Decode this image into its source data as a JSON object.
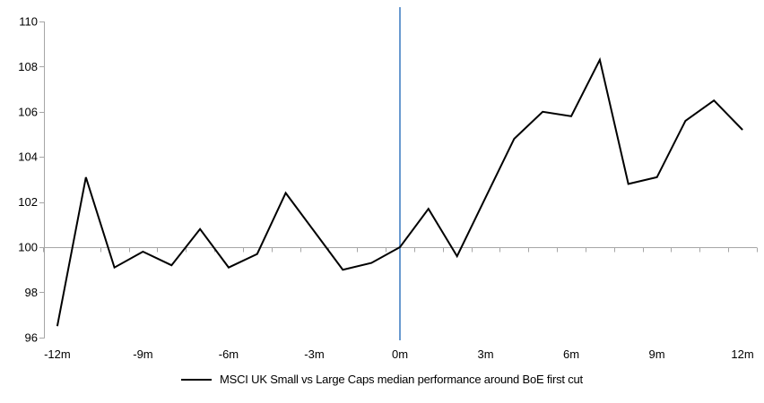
{
  "legend": {
    "label": "MSCI UK Small vs Large Caps median performance around BoE first cut"
  },
  "chart_data": {
    "type": "line",
    "title": "",
    "xlabel": "",
    "ylabel": "",
    "x_unit": "m",
    "x": [
      -12,
      -11,
      -10,
      -9,
      -8,
      -7,
      -6,
      -5,
      -4,
      -3,
      -2,
      -1,
      0,
      1,
      2,
      3,
      4,
      5,
      6,
      7,
      8,
      9,
      10,
      11,
      12
    ],
    "series": [
      {
        "name": "MSCI UK Small vs Large Caps median performance around BoE first cut",
        "color": "#000000",
        "values": [
          96.5,
          103.1,
          99.1,
          99.8,
          99.2,
          100.8,
          99.1,
          99.7,
          102.4,
          100.7,
          99.0,
          99.3,
          100.0,
          101.7,
          99.6,
          102.2,
          104.8,
          106.0,
          105.8,
          108.3,
          102.8,
          103.1,
          105.6,
          106.5,
          105.2
        ]
      }
    ],
    "ylim": [
      96,
      110
    ],
    "xlim": [
      -12.5,
      12.5
    ],
    "yticks": [
      96,
      98,
      100,
      102,
      104,
      106,
      108,
      110
    ],
    "xtick_labels": [
      {
        "x": -12,
        "label": "-12m"
      },
      {
        "x": -9,
        "label": "-9m"
      },
      {
        "x": -6,
        "label": "-6m"
      },
      {
        "x": -3,
        "label": "-3m"
      },
      {
        "x": 0,
        "label": "0m"
      },
      {
        "x": 3,
        "label": "3m"
      },
      {
        "x": 6,
        "label": "6m"
      },
      {
        "x": 9,
        "label": "9m"
      },
      {
        "x": 12,
        "label": "12m"
      }
    ],
    "minor_xtick_every": 1,
    "baseline_y": 100,
    "event_line_x": 0,
    "grid": "off",
    "legend_position": "bottom-center",
    "colors": {
      "series": "#000000",
      "axis": "#A6A6A6",
      "baseline": "#A6A6A6",
      "event_line": "#6A9AD0",
      "text": "#000000",
      "background": "#FFFFFF"
    }
  }
}
